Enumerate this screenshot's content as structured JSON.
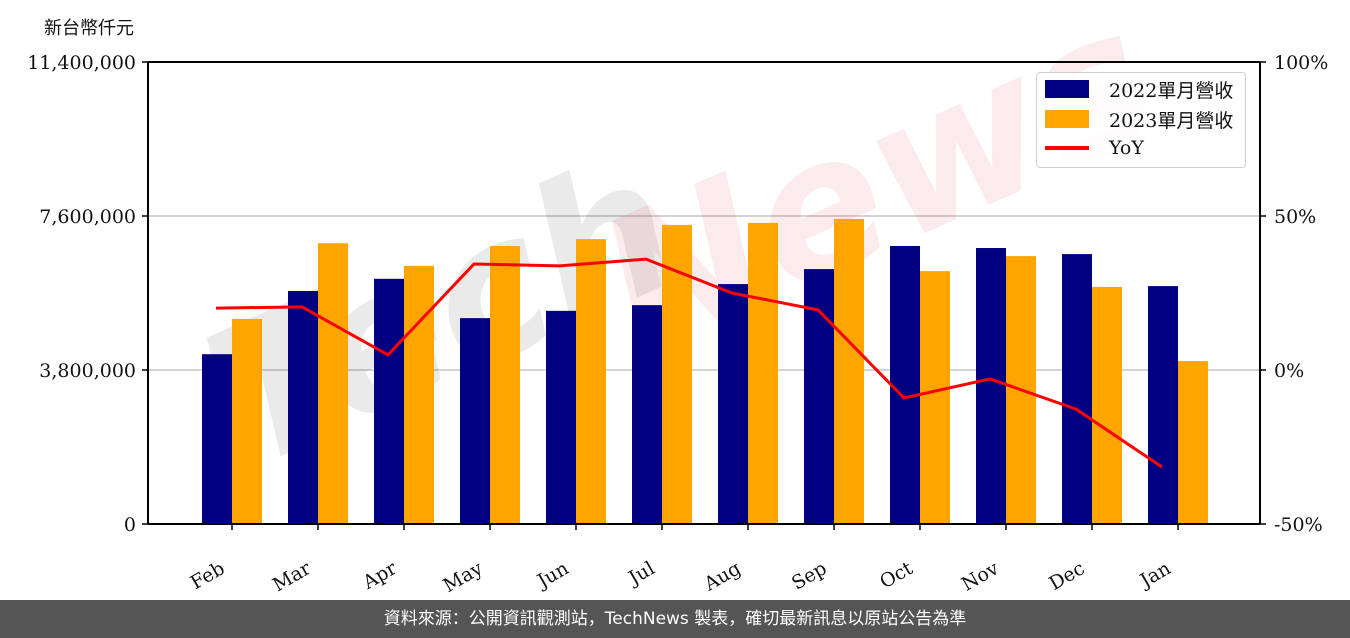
{
  "chart_data": {
    "type": "bar",
    "title": "",
    "ylabel": "新台幣仟元",
    "y2label": "",
    "xlabel": "",
    "categories": [
      "Feb",
      "Mar",
      "Apr",
      "May",
      "Jun",
      "Jul",
      "Aug",
      "Sep",
      "Oct",
      "Nov",
      "Dec",
      "Jan"
    ],
    "series": [
      {
        "name": "2022單月營收",
        "type": "bar",
        "color": "#000080",
        "values": [
          4190000,
          5750000,
          6050000,
          5080000,
          5260000,
          5400000,
          5920000,
          6290000,
          6860000,
          6810000,
          6660000,
          5870000
        ]
      },
      {
        "name": "2023單月營收",
        "type": "bar",
        "color": "#FFA500",
        "values": [
          5060000,
          6930000,
          6370000,
          6860000,
          7030000,
          7380000,
          7430000,
          7530000,
          6240000,
          6610000,
          5850000,
          4020000
        ]
      },
      {
        "name": "YoY",
        "type": "line",
        "axis": "right",
        "color": "#FF0000",
        "values": [
          20.1,
          20.5,
          4.9,
          34.4,
          33.8,
          36.0,
          25.0,
          19.5,
          -9.1,
          -2.9,
          -12.7,
          -31.5
        ]
      }
    ],
    "ylim": [
      0,
      11400000
    ],
    "y2lim": [
      -50,
      100
    ],
    "yticks": [
      "0",
      "3,800,000",
      "7,600,000",
      "11,400,000"
    ],
    "ytick_values": [
      0,
      3800000,
      7600000,
      11400000
    ],
    "y2ticks": [
      "-50%",
      "0%",
      "50%",
      "100%"
    ],
    "y2tick_values": [
      -50,
      0,
      50,
      100
    ],
    "grid": "horizontal",
    "legend_position": "upper right",
    "watermark": "TechNews"
  },
  "labels": {
    "unit": "新台幣仟元",
    "legend": [
      "2022單月營收",
      "2023單月營收",
      "YoY"
    ],
    "footer": "資料來源：公開資訊觀測站，TechNews 製表，確切最新訊息以原站公告為準"
  }
}
